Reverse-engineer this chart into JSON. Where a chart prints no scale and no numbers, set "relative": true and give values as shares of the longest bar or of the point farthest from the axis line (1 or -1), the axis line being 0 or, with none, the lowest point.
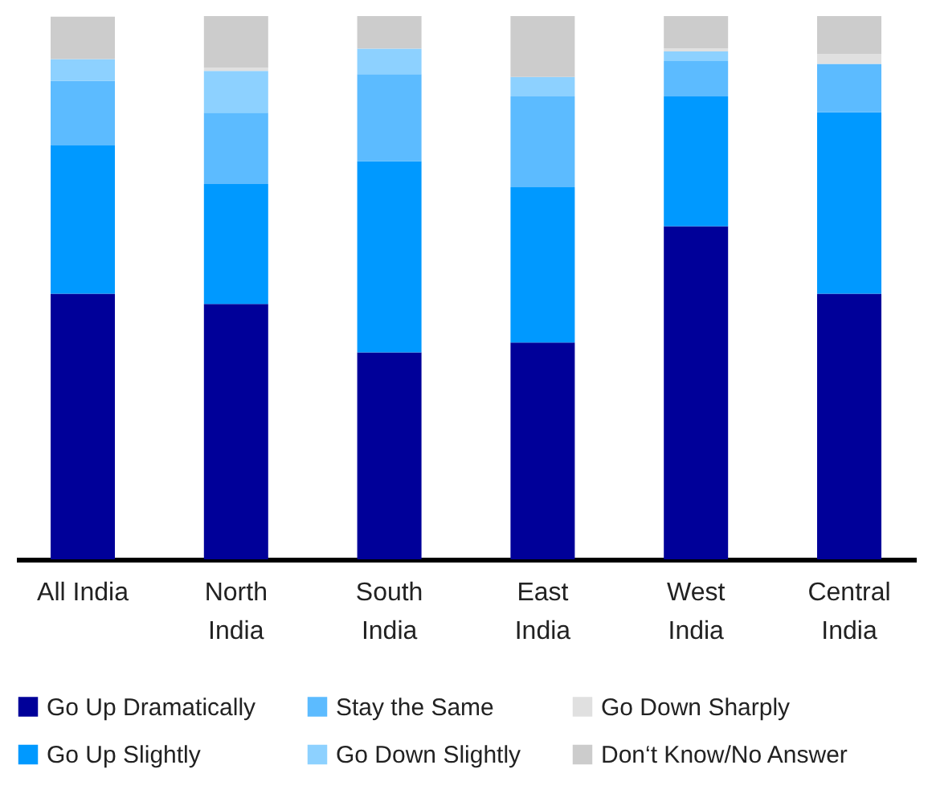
{
  "chart_data": {
    "type": "bar",
    "stacked": true,
    "relative": true,
    "legend": "bottom",
    "categories": [
      "All India",
      "North India",
      "South India",
      "East India",
      "West India",
      "Central India"
    ],
    "series": [
      {
        "name": "Go Up Dramatically",
        "color": "#000099",
        "values": [
          0.489,
          0.47,
          0.381,
          0.399,
          0.613,
          0.489
        ]
      },
      {
        "name": "Go Up Slightly",
        "color": "#0099ff",
        "values": [
          0.273,
          0.221,
          0.352,
          0.286,
          0.239,
          0.334
        ]
      },
      {
        "name": "Stay the Same",
        "color": "#5cbbff",
        "values": [
          0.119,
          0.131,
          0.16,
          0.167,
          0.065,
          0.089
        ]
      },
      {
        "name": "Go Down Slightly",
        "color": "#8dd1ff",
        "values": [
          0.04,
          0.077,
          0.047,
          0.036,
          0.018,
          0.0
        ]
      },
      {
        "name": "Go Down Sharply",
        "color": "#e0e0e0",
        "values": [
          0.0,
          0.006,
          null,
          0.0,
          0.006,
          0.018
        ]
      },
      {
        "name": "Don‘t Know/No Answer",
        "color": "#cccccc",
        "values": [
          0.078,
          0.095,
          0.06,
          0.112,
          0.059,
          0.07
        ]
      }
    ]
  }
}
